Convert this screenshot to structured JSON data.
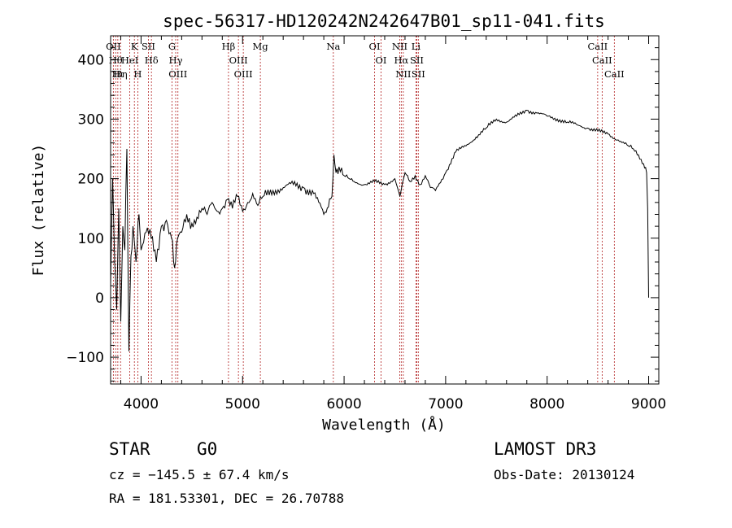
{
  "chart_data": {
    "type": "line",
    "title": "spec-56317-HD120242N242647B01_sp11-041.fits",
    "xlabel": "Wavelength (Å)",
    "ylabel": "Flux (relative)",
    "xlim": [
      3700,
      9100
    ],
    "ylim": [
      -145,
      440
    ],
    "xticks": [
      4000,
      5000,
      6000,
      7000,
      8000,
      9000
    ],
    "yticks": [
      -100,
      0,
      100,
      200,
      300,
      400
    ],
    "grid": false,
    "series": [
      {
        "name": "flux",
        "x": [
          3700,
          3720,
          3740,
          3760,
          3780,
          3800,
          3820,
          3840,
          3860,
          3880,
          3900,
          3920,
          3950,
          3980,
          4000,
          4050,
          4100,
          4150,
          4200,
          4250,
          4300,
          4330,
          4360,
          4400,
          4450,
          4500,
          4550,
          4600,
          4650,
          4700,
          4750,
          4800,
          4850,
          4900,
          4950,
          5000,
          5050,
          5100,
          5150,
          5200,
          5300,
          5400,
          5500,
          5600,
          5700,
          5800,
          5880,
          5900,
          5920,
          5950,
          6000,
          6050,
          6100,
          6200,
          6300,
          6400,
          6500,
          6550,
          6600,
          6650,
          6700,
          6750,
          6800,
          6850,
          6900,
          7000,
          7100,
          7200,
          7300,
          7400,
          7500,
          7600,
          7700,
          7800,
          7900,
          8000,
          8100,
          8200,
          8300,
          8400,
          8500,
          8600,
          8700,
          8800,
          8850,
          8900,
          8950,
          8980,
          8990,
          9000
        ],
        "y": [
          20,
          200,
          60,
          -20,
          150,
          -40,
          120,
          80,
          250,
          -90,
          70,
          120,
          60,
          140,
          80,
          110,
          100,
          60,
          120,
          130,
          100,
          50,
          100,
          110,
          140,
          125,
          135,
          150,
          140,
          160,
          145,
          150,
          165,
          150,
          170,
          145,
          160,
          175,
          155,
          170,
          180,
          185,
          190,
          185,
          175,
          140,
          170,
          240,
          210,
          220,
          205,
          200,
          195,
          190,
          195,
          190,
          200,
          170,
          210,
          195,
          205,
          190,
          205,
          185,
          180,
          210,
          245,
          255,
          270,
          285,
          300,
          295,
          305,
          315,
          310,
          305,
          300,
          295,
          290,
          285,
          280,
          275,
          265,
          255,
          250,
          240,
          225,
          210,
          150,
          0
        ]
      }
    ],
    "lines": [
      {
        "w": 3727,
        "label": "OII"
      },
      {
        "w": 3750,
        "label": "Hθ"
      },
      {
        "w": 3771,
        "label": "Hι"
      },
      {
        "w": 3798,
        "label": "Hη"
      },
      {
        "w": 3889,
        "label": "HeI"
      },
      {
        "w": 3934,
        "label": "K"
      },
      {
        "w": 3968,
        "label": "H"
      },
      {
        "w": 4072,
        "label": "SII"
      },
      {
        "w": 4102,
        "label": "Hδ"
      },
      {
        "w": 4305,
        "label": "G"
      },
      {
        "w": 4341,
        "label": "Hγ"
      },
      {
        "w": 4363,
        "label": "OIII"
      },
      {
        "w": 4861,
        "label": "Hβ"
      },
      {
        "w": 4959,
        "label": "OIII"
      },
      {
        "w": 5007,
        "label": "OIII"
      },
      {
        "w": 5175,
        "label": "Mg"
      },
      {
        "w": 5894,
        "label": "Na"
      },
      {
        "w": 6300,
        "label": "OI"
      },
      {
        "w": 6364,
        "label": "OI"
      },
      {
        "w": 6548,
        "label": "NII"
      },
      {
        "w": 6563,
        "label": "Hα"
      },
      {
        "w": 6583,
        "label": "NII"
      },
      {
        "w": 6708,
        "label": "Li"
      },
      {
        "w": 6716,
        "label": "SII"
      },
      {
        "w": 6731,
        "label": "SII"
      },
      {
        "w": 8498,
        "label": "CaII"
      },
      {
        "w": 8542,
        "label": "CaII"
      },
      {
        "w": 8662,
        "label": "CaII"
      }
    ]
  },
  "info": {
    "class": "STAR",
    "subclass": "G0",
    "survey": "LAMOST DR3",
    "cz": "cz = −145.5 ± 67.4 km/s",
    "obs_date": "Obs-Date: 20130124",
    "coords": "RA = 181.53301, DEC =  26.70788"
  }
}
